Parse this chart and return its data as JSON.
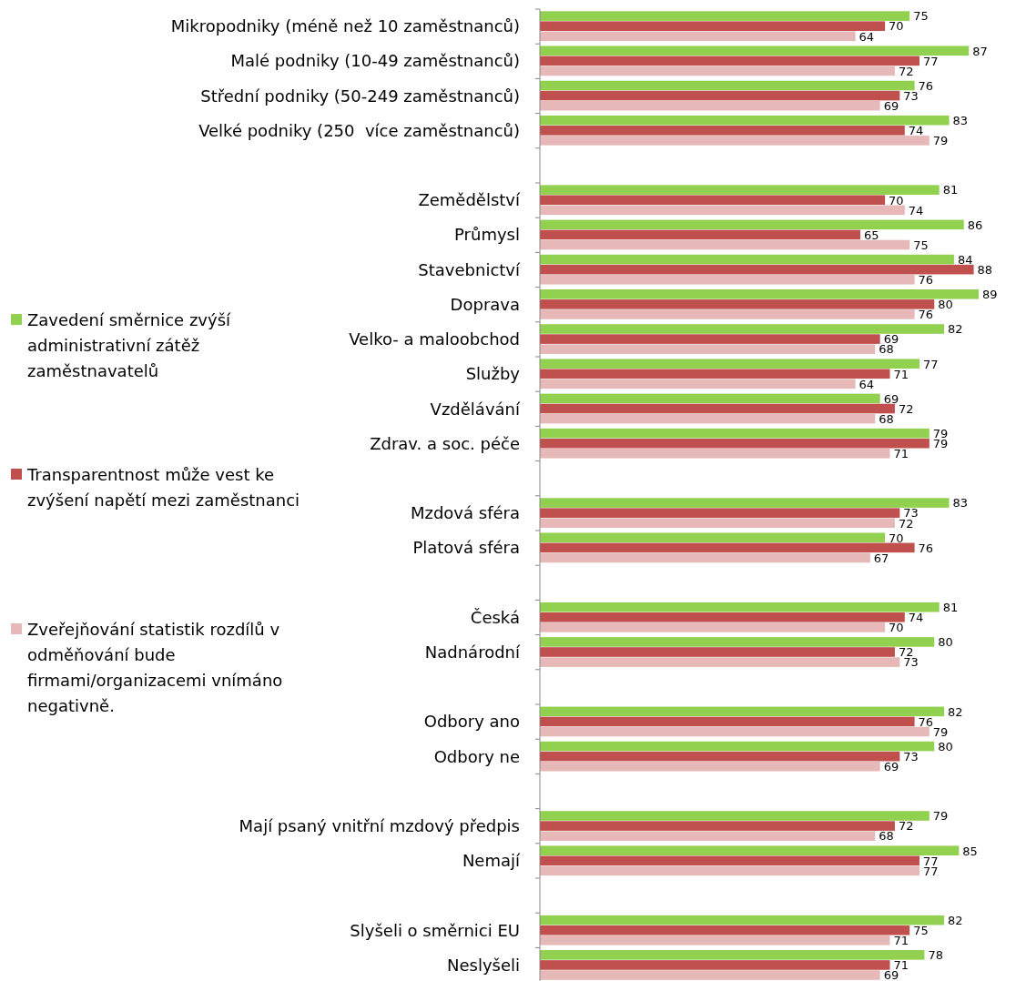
{
  "chart_data": {
    "type": "bar",
    "orientation": "horizontal",
    "data_labels": true,
    "legend": "left",
    "grid": false,
    "categories": [
      "Mikropodniky (méně než 10 zaměstnanců)",
      "Malé podniky (10-49 zaměstnanců)",
      "Střední podniky (50-249 zaměstnanců)",
      "Velké podniky (250  více zaměstnanců)",
      null,
      "Zemědělství",
      "Průmysl",
      "Stavebnictví",
      "Doprava",
      "Velko- a maloobchod",
      "Služby",
      "Vzdělávání",
      "Zdrav. a soc. péče",
      null,
      "Mzdová sféra",
      "Platová sféra",
      null,
      "Česká",
      "Nadnárodní",
      null,
      "Odbory ano",
      "Odbory ne",
      null,
      "Mají psaný vnitřní mzdový předpis",
      "Nemají",
      null,
      "Slyšeli o směrnici EU",
      "Neslyšeli"
    ],
    "series": [
      {
        "name": "Zavedení směrnice zvýší administrativní zátěž zaměstnavatelů",
        "color": "#92d050",
        "values": [
          75,
          87,
          76,
          83,
          null,
          81,
          86,
          84,
          89,
          82,
          77,
          69,
          79,
          null,
          83,
          70,
          null,
          81,
          80,
          null,
          82,
          80,
          null,
          79,
          85,
          null,
          82,
          78
        ]
      },
      {
        "name": "Transparentnost může vest ke zvýšení napětí mezi zaměstnanci",
        "color": "#c0504d",
        "values": [
          70,
          77,
          73,
          74,
          null,
          70,
          65,
          88,
          80,
          69,
          71,
          72,
          79,
          null,
          73,
          76,
          null,
          74,
          72,
          null,
          76,
          73,
          null,
          72,
          77,
          null,
          75,
          71
        ]
      },
      {
        "name": "Zveřejňování statistik rozdílů v odměňování bude firmami/organizacemi vnímáno negativně.",
        "color": "#e6b9b8",
        "values": [
          64,
          72,
          69,
          79,
          null,
          74,
          75,
          76,
          76,
          68,
          64,
          68,
          71,
          null,
          72,
          67,
          null,
          70,
          73,
          null,
          79,
          69,
          null,
          68,
          77,
          null,
          71,
          69
        ]
      }
    ]
  }
}
